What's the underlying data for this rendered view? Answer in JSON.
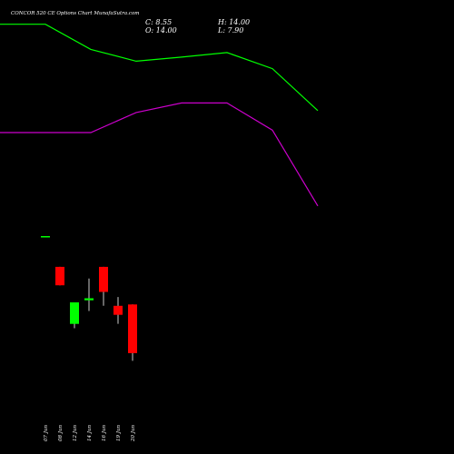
{
  "title": "CONCOR 520 CE Options Chart MunafaSutra.com",
  "ohlc": {
    "close_label": "C: 8.55",
    "high_label": "H: 14.00",
    "open_label": "O: 14.00",
    "low_label": "L: 7.90"
  },
  "colors": {
    "background": "#000000",
    "up": "#00ff00",
    "down": "#ff0000",
    "upper_line": "#00ff00",
    "lower_line": "#cc00cc",
    "text": "#ffffff",
    "wick": "#ffffff"
  },
  "chart_data": {
    "type": "candlestick",
    "y_scale": "log",
    "candles": [
      {
        "date": "07 Jun",
        "open": 28.0,
        "high": 28.0,
        "low": 28.0,
        "close": 28.0,
        "color": "up"
      },
      {
        "date": "08 Jun",
        "open": 20.5,
        "high": 20.5,
        "low": 17.0,
        "close": 17.0,
        "color": "down"
      },
      {
        "date": "12 Jun",
        "open": 11.5,
        "high": 14.3,
        "low": 11.0,
        "close": 14.3,
        "color": "up"
      },
      {
        "date": "14 Jun",
        "open": 14.6,
        "high": 18.2,
        "low": 13.1,
        "close": 14.9,
        "color": "up"
      },
      {
        "date": "16 Jun",
        "open": 20.5,
        "high": 20.5,
        "low": 13.8,
        "close": 15.9,
        "color": "down"
      },
      {
        "date": "19 Jun",
        "open": 13.8,
        "high": 15.1,
        "low": 11.5,
        "close": 12.6,
        "color": "down"
      },
      {
        "date": "20 Jun",
        "open": 14.0,
        "high": 14.0,
        "low": 7.9,
        "close": 8.55,
        "color": "down"
      }
    ],
    "upper_line": [
      240,
      240,
      186,
      165,
      172,
      180,
      153,
      100
    ],
    "lower_line": [
      80,
      80,
      80,
      98,
      108,
      108,
      82,
      38
    ]
  }
}
